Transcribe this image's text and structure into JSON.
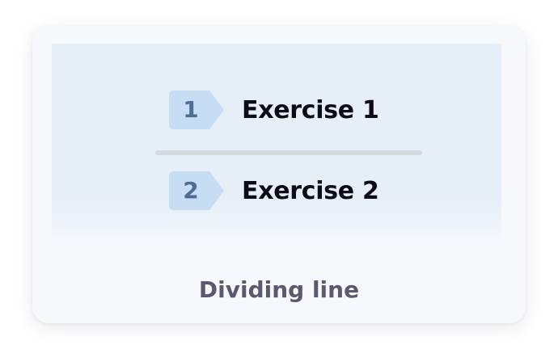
{
  "preview": {
    "items": [
      {
        "number": "1",
        "label": "Exercise 1"
      },
      {
        "number": "2",
        "label": "Exercise 2"
      }
    ]
  },
  "caption": "Dividing line",
  "colors": {
    "badge_fill": "#c7ddf3",
    "badge_text": "#4d6d94",
    "preview_bg": "#e6eef8",
    "divider": "#d5d8de",
    "card_bg": "#f6f8fc",
    "caption_text": "#5a5a6e"
  }
}
